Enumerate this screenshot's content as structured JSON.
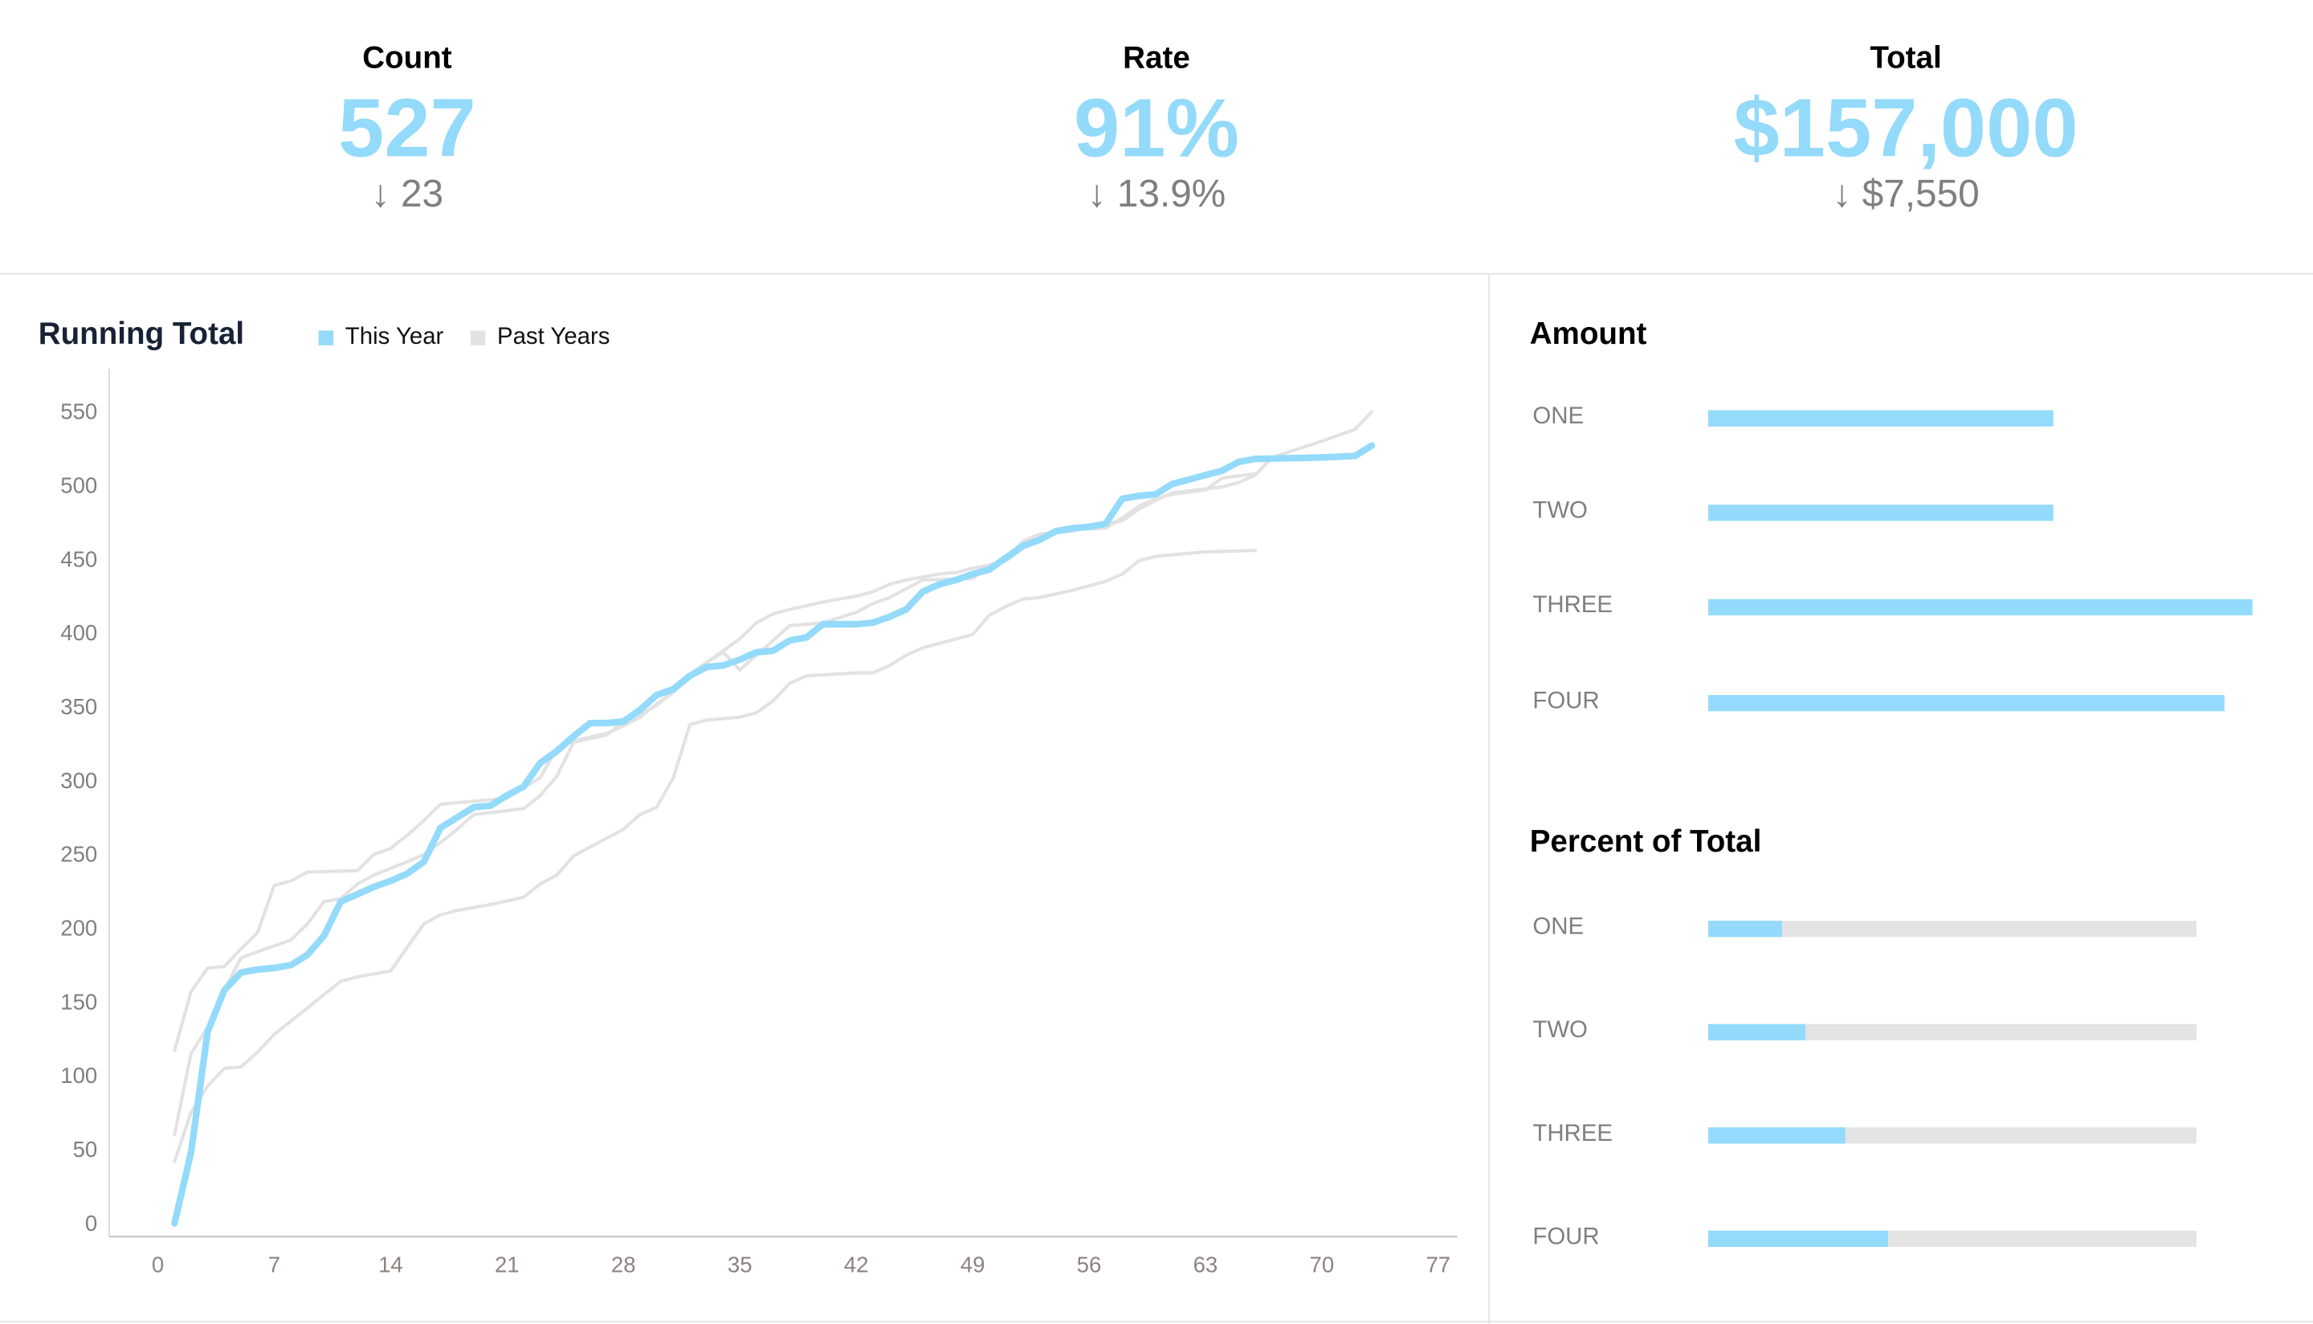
{
  "kpis": [
    {
      "label": "Count",
      "value": "527",
      "delta": "↓ 23"
    },
    {
      "label": "Rate",
      "value": "91%",
      "delta": "↓ 13.9%"
    },
    {
      "label": "Total",
      "value": "$157,000",
      "delta": "↓ $7,550"
    }
  ],
  "colors": {
    "this_year": "#93dafb",
    "past_years": "#e2e2e2",
    "track": "#e4e4e4"
  },
  "chart_data": [
    {
      "type": "line",
      "title": "Running Total",
      "legend": [
        "This Year",
        "Past Years"
      ],
      "legend_position": "top",
      "xlim": [
        0,
        77
      ],
      "ylim": [
        0,
        550
      ],
      "x_ticks": [
        "0",
        "7",
        "14",
        "21",
        "28",
        "35",
        "42",
        "49",
        "56",
        "63",
        "70",
        "77"
      ],
      "y_ticks": [
        "0",
        "50",
        "100",
        "150",
        "200",
        "250",
        "300",
        "350",
        "400",
        "450",
        "500",
        "550"
      ],
      "grid": false,
      "series": [
        {
          "name": "This Year",
          "points": [
            [
              1,
              0
            ],
            [
              2,
              48
            ],
            [
              3,
              130
            ],
            [
              4,
              158
            ],
            [
              5,
              170
            ],
            [
              6,
              172
            ],
            [
              7,
              173
            ],
            [
              8,
              175
            ],
            [
              9,
              182
            ],
            [
              10,
              195
            ],
            [
              11,
              218
            ],
            [
              12,
              223
            ],
            [
              13,
              228
            ],
            [
              14,
              232
            ],
            [
              15,
              237
            ],
            [
              16,
              245
            ],
            [
              17,
              268
            ],
            [
              18,
              275
            ],
            [
              19,
              282
            ],
            [
              20,
              283
            ],
            [
              21,
              290
            ],
            [
              22,
              296
            ],
            [
              23,
              312
            ],
            [
              24,
              320
            ],
            [
              25,
              330
            ],
            [
              26,
              339
            ],
            [
              27,
              339
            ],
            [
              28,
              340
            ],
            [
              29,
              348
            ],
            [
              30,
              358
            ],
            [
              31,
              362
            ],
            [
              32,
              371
            ],
            [
              33,
              377
            ],
            [
              34,
              378
            ],
            [
              35,
              382
            ],
            [
              36,
              387
            ],
            [
              37,
              388
            ],
            [
              38,
              395
            ],
            [
              39,
              397
            ],
            [
              40,
              406
            ],
            [
              42,
              406
            ],
            [
              43,
              407
            ],
            [
              44,
              411
            ],
            [
              45,
              416
            ],
            [
              46,
              428
            ],
            [
              47,
              433
            ],
            [
              48,
              436
            ],
            [
              49,
              440
            ],
            [
              50,
              443
            ],
            [
              51,
              451
            ],
            [
              52,
              459
            ],
            [
              53,
              463
            ],
            [
              54,
              469
            ],
            [
              55,
              471
            ],
            [
              56,
              472
            ],
            [
              57,
              474
            ],
            [
              58,
              491
            ],
            [
              59,
              493
            ],
            [
              60,
              494
            ],
            [
              61,
              501
            ],
            [
              62,
              504
            ],
            [
              63,
              507
            ],
            [
              64,
              510
            ],
            [
              65,
              516
            ],
            [
              66,
              518
            ],
            [
              70,
              519
            ],
            [
              72,
              520
            ],
            [
              73,
              527
            ]
          ]
        },
        {
          "name": "Past Years",
          "points": [
            [
              1,
              117
            ],
            [
              2,
              157
            ],
            [
              3,
              173
            ],
            [
              4,
              174
            ],
            [
              5,
              186
            ],
            [
              6,
              197
            ],
            [
              7,
              229
            ],
            [
              8,
              232
            ],
            [
              9,
              238
            ],
            [
              12,
              239
            ],
            [
              13,
              250
            ],
            [
              14,
              254
            ],
            [
              15,
              263
            ],
            [
              16,
              273
            ],
            [
              17,
              284
            ],
            [
              20,
              287
            ],
            [
              21,
              288
            ],
            [
              22,
              295
            ],
            [
              23,
              302
            ],
            [
              24,
              322
            ],
            [
              25,
              327
            ],
            [
              27,
              332
            ],
            [
              28,
              337
            ],
            [
              29,
              343
            ],
            [
              30,
              352
            ],
            [
              31,
              360
            ],
            [
              32,
              372
            ],
            [
              33,
              380
            ],
            [
              34,
              388
            ],
            [
              35,
              396
            ],
            [
              36,
              407
            ],
            [
              37,
              413
            ],
            [
              38,
              416
            ],
            [
              40,
              421
            ],
            [
              42,
              425
            ],
            [
              43,
              428
            ],
            [
              44,
              433
            ],
            [
              45,
              436
            ],
            [
              47,
              440
            ],
            [
              48,
              441
            ],
            [
              49,
              444
            ],
            [
              50,
              446
            ],
            [
              51,
              450
            ],
            [
              52,
              462
            ],
            [
              53,
              467
            ],
            [
              55,
              469
            ],
            [
              56,
              472
            ],
            [
              57,
              474
            ],
            [
              58,
              476
            ],
            [
              59,
              484
            ],
            [
              60,
              490
            ],
            [
              61,
              495
            ],
            [
              64,
              499
            ],
            [
              65,
              502
            ],
            [
              66,
              507
            ],
            [
              67,
              519
            ],
            [
              70,
              530
            ],
            [
              72,
              538
            ],
            [
              73,
              550
            ]
          ]
        },
        {
          "name": "Past Years",
          "points": [
            [
              1,
              60
            ],
            [
              2,
              115
            ],
            [
              3,
              133
            ],
            [
              4,
              158
            ],
            [
              5,
              180
            ],
            [
              7,
              188
            ],
            [
              8,
              192
            ],
            [
              9,
              203
            ],
            [
              10,
              218
            ],
            [
              11,
              220
            ],
            [
              12,
              230
            ],
            [
              13,
              236
            ],
            [
              15,
              245
            ],
            [
              16,
              250
            ],
            [
              17,
              258
            ],
            [
              18,
              267
            ],
            [
              19,
              277
            ],
            [
              22,
              281
            ],
            [
              23,
              290
            ],
            [
              24,
              303
            ],
            [
              25,
              326
            ],
            [
              27,
              331
            ],
            [
              28,
              340
            ],
            [
              29,
              345
            ],
            [
              30,
              351
            ],
            [
              31,
              360
            ],
            [
              32,
              372
            ],
            [
              33,
              380
            ],
            [
              34,
              387
            ],
            [
              35,
              375
            ],
            [
              36,
              385
            ],
            [
              37,
              395
            ],
            [
              38,
              405
            ],
            [
              40,
              407
            ],
            [
              42,
              414
            ],
            [
              43,
              420
            ],
            [
              44,
              424
            ],
            [
              45,
              430
            ],
            [
              46,
              436
            ],
            [
              49,
              437
            ],
            [
              50,
              446
            ],
            [
              51,
              449
            ],
            [
              52,
              457
            ],
            [
              53,
              466
            ],
            [
              55,
              470
            ],
            [
              57,
              471
            ],
            [
              58,
              478
            ],
            [
              59,
              486
            ],
            [
              60,
              491
            ],
            [
              61,
              494
            ],
            [
              63,
              497
            ],
            [
              64,
              505
            ],
            [
              66,
              508
            ]
          ]
        },
        {
          "name": "Past Years",
          "points": [
            [
              1,
              42
            ],
            [
              2,
              75
            ],
            [
              3,
              93
            ],
            [
              4,
              105
            ],
            [
              5,
              106
            ],
            [
              6,
              116
            ],
            [
              7,
              128
            ],
            [
              8,
              137
            ],
            [
              9,
              146
            ],
            [
              10,
              155
            ],
            [
              11,
              164
            ],
            [
              12,
              167
            ],
            [
              14,
              171
            ],
            [
              15,
              187
            ],
            [
              16,
              203
            ],
            [
              17,
              209
            ],
            [
              18,
              212
            ],
            [
              20,
              216
            ],
            [
              22,
              221
            ],
            [
              23,
              230
            ],
            [
              24,
              236
            ],
            [
              25,
              249
            ],
            [
              26,
              255
            ],
            [
              27,
              261
            ],
            [
              28,
              267
            ],
            [
              29,
              277
            ],
            [
              30,
              282
            ],
            [
              31,
              302
            ],
            [
              32,
              338
            ],
            [
              33,
              341
            ],
            [
              35,
              343
            ],
            [
              36,
              346
            ],
            [
              37,
              354
            ],
            [
              38,
              366
            ],
            [
              39,
              371
            ],
            [
              42,
              373
            ],
            [
              43,
              373
            ],
            [
              44,
              378
            ],
            [
              45,
              385
            ],
            [
              46,
              390
            ],
            [
              47,
              393
            ],
            [
              48,
              396
            ],
            [
              49,
              399
            ],
            [
              50,
              412
            ],
            [
              51,
              418
            ],
            [
              52,
              423
            ],
            [
              53,
              424
            ],
            [
              55,
              429
            ],
            [
              56,
              432
            ],
            [
              57,
              435
            ],
            [
              58,
              440
            ],
            [
              59,
              449
            ],
            [
              60,
              452
            ],
            [
              62,
              454
            ],
            [
              63,
              455
            ],
            [
              66,
              456
            ]
          ]
        }
      ]
    },
    {
      "type": "bar",
      "title": "Amount",
      "orientation": "horizontal",
      "categories": [
        "ONE",
        "TWO",
        "THREE",
        "FOUR"
      ],
      "relative_values": [
        0.635,
        0.635,
        1.0,
        0.948
      ]
    },
    {
      "type": "bar",
      "title": "Percent of Total",
      "orientation": "horizontal",
      "categories": [
        "ONE",
        "TWO",
        "THREE",
        "FOUR"
      ],
      "values": [
        0.15,
        0.2,
        0.28,
        0.37
      ]
    }
  ]
}
